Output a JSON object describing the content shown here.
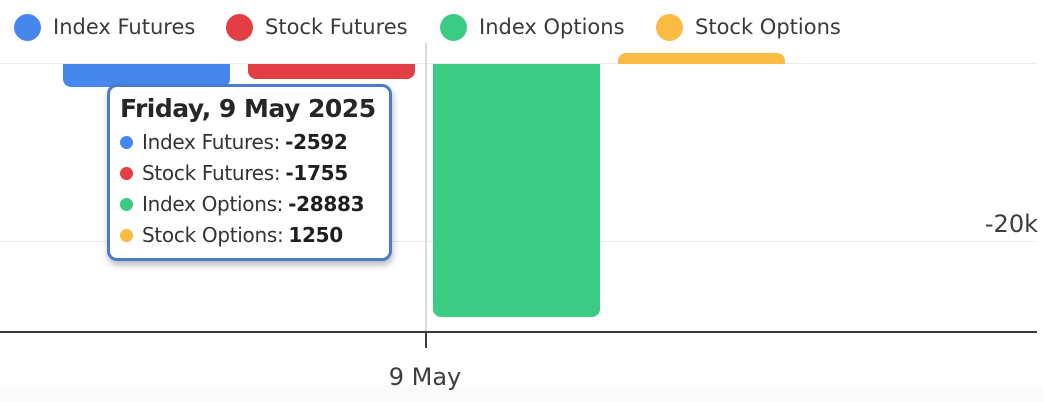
{
  "legend": {
    "items": [
      {
        "label": "Index Futures",
        "color": "#4587ec"
      },
      {
        "label": "Stock Futures",
        "color": "#e23e44"
      },
      {
        "label": "Index Options",
        "color": "#3bcb82"
      },
      {
        "label": "Stock Options",
        "color": "#f9bb42"
      }
    ]
  },
  "tooltip": {
    "title": "Friday, 9 May 2025",
    "border_color": "#4a7dc9",
    "rows": [
      {
        "label": "Index Futures:",
        "value": "-2592",
        "color": "#4587ec"
      },
      {
        "label": "Stock Futures:",
        "value": "-1755",
        "color": "#e23e44"
      },
      {
        "label": "Index Options:",
        "value": "-28883",
        "color": "#3bcb82"
      },
      {
        "label": "Stock Options:",
        "value": "1250",
        "color": "#f9bb42"
      }
    ]
  },
  "axes": {
    "y_tick_label": "-20k",
    "x_tick_label": "9 May"
  },
  "chart_data": {
    "type": "bar",
    "categories": [
      "9 May"
    ],
    "series": [
      {
        "name": "Index Futures",
        "color": "#4587ec",
        "values": [
          -2592
        ]
      },
      {
        "name": "Stock Futures",
        "color": "#e23e44",
        "values": [
          -1755
        ]
      },
      {
        "name": "Index Options",
        "color": "#3bcb82",
        "values": [
          -28883
        ]
      },
      {
        "name": "Stock Options",
        "color": "#f9bb42",
        "values": [
          1250
        ]
      }
    ],
    "title": "",
    "xlabel": "",
    "ylabel": "",
    "y_axis": {
      "position": "right",
      "visible_ticks": [
        "-20k"
      ],
      "approx_visible_range": [
        -30000,
        2000
      ]
    },
    "x_axis": {
      "visible_ticks": [
        "9 May"
      ]
    },
    "grid": true,
    "legend_position": "top",
    "tooltip_date": "Friday, 9 May 2025"
  }
}
